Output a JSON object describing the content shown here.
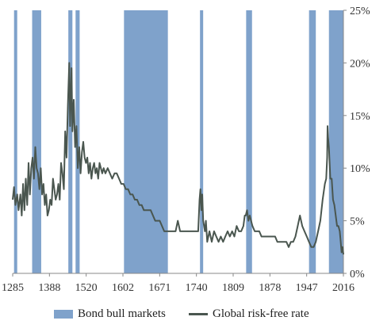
{
  "chart_data": {
    "type": "line",
    "title": "",
    "xlabel": "",
    "ylabel": "",
    "x_ticks": [
      "1285",
      "1388",
      "1520",
      "1602",
      "1671",
      "1740",
      "1809",
      "1878",
      "1947",
      "2016"
    ],
    "y_ticks": [
      "0%",
      "5%",
      "10%",
      "15%",
      "20%",
      "25%"
    ],
    "xlim": [
      1285,
      2016
    ],
    "ylim": [
      0,
      25
    ],
    "grid": false,
    "legend_position": "bottom",
    "bull_markets": {
      "name": "Bond bull markets",
      "color": "#7fa2cb",
      "periods": [
        [
          1288,
          1295
        ],
        [
          1328,
          1348
        ],
        [
          1408,
          1417
        ],
        [
          1424,
          1433
        ],
        [
          1531,
          1628
        ],
        [
          1699,
          1706
        ],
        [
          1801,
          1814
        ],
        [
          1940,
          1955
        ],
        [
          1984,
          2016
        ]
      ]
    },
    "series": [
      {
        "name": "Global risk-free rate",
        "color": "#4a564f",
        "points": [
          [
            1285,
            7.0
          ],
          [
            1288,
            8.2
          ],
          [
            1291,
            6.5
          ],
          [
            1295,
            7.5
          ],
          [
            1298,
            6.0
          ],
          [
            1302,
            7.5
          ],
          [
            1305,
            5.5
          ],
          [
            1308,
            8.5
          ],
          [
            1311,
            6.0
          ],
          [
            1314,
            9.0
          ],
          [
            1317,
            6.5
          ],
          [
            1320,
            10.5
          ],
          [
            1323,
            7.5
          ],
          [
            1326,
            10.0
          ],
          [
            1329,
            11.0
          ],
          [
            1332,
            9.0
          ],
          [
            1335,
            12.0
          ],
          [
            1338,
            10.0
          ],
          [
            1341,
            9.5
          ],
          [
            1344,
            8.0
          ],
          [
            1347,
            10.0
          ],
          [
            1350,
            7.5
          ],
          [
            1353,
            8.5
          ],
          [
            1356,
            6.5
          ],
          [
            1359,
            7.5
          ],
          [
            1362,
            5.5
          ],
          [
            1365,
            6.0
          ],
          [
            1368,
            7.0
          ],
          [
            1371,
            6.5
          ],
          [
            1374,
            9.0
          ],
          [
            1377,
            8.0
          ],
          [
            1380,
            7.0
          ],
          [
            1383,
            7.5
          ],
          [
            1386,
            8.5
          ],
          [
            1389,
            7.0
          ],
          [
            1392,
            10.5
          ],
          [
            1395,
            9.5
          ],
          [
            1398,
            8.0
          ],
          [
            1401,
            13.5
          ],
          [
            1404,
            11.0
          ],
          [
            1407,
            16.0
          ],
          [
            1410,
            20.0
          ],
          [
            1412,
            14.0
          ],
          [
            1415,
            19.5
          ],
          [
            1417,
            13.5
          ],
          [
            1420,
            16.5
          ],
          [
            1423,
            12.0
          ],
          [
            1426,
            14.0
          ],
          [
            1429,
            10.0
          ],
          [
            1432,
            12.0
          ],
          [
            1435,
            9.5
          ],
          [
            1438,
            11.5
          ],
          [
            1441,
            12.5
          ],
          [
            1444,
            11.0
          ],
          [
            1447,
            10.5
          ],
          [
            1450,
            11.0
          ],
          [
            1453,
            9.5
          ],
          [
            1456,
            10.5
          ],
          [
            1459,
            9.0
          ],
          [
            1462,
            10.0
          ],
          [
            1465,
            10.5
          ],
          [
            1468,
            9.5
          ],
          [
            1471,
            10.0
          ],
          [
            1474,
            9.0
          ],
          [
            1477,
            10.5
          ],
          [
            1480,
            10.0
          ],
          [
            1483,
            9.5
          ],
          [
            1486,
            10.0
          ],
          [
            1490,
            9.5
          ],
          [
            1495,
            10.0
          ],
          [
            1500,
            9.5
          ],
          [
            1505,
            9.0
          ],
          [
            1510,
            9.5
          ],
          [
            1515,
            9.5
          ],
          [
            1520,
            9.0
          ],
          [
            1525,
            8.5
          ],
          [
            1530,
            8.5
          ],
          [
            1535,
            8.0
          ],
          [
            1540,
            8.0
          ],
          [
            1545,
            7.5
          ],
          [
            1550,
            7.5
          ],
          [
            1555,
            7.0
          ],
          [
            1560,
            7.0
          ],
          [
            1565,
            6.5
          ],
          [
            1570,
            6.5
          ],
          [
            1575,
            6.0
          ],
          [
            1580,
            6.0
          ],
          [
            1585,
            6.0
          ],
          [
            1590,
            6.0
          ],
          [
            1600,
            5.0
          ],
          [
            1610,
            5.0
          ],
          [
            1620,
            4.0
          ],
          [
            1630,
            4.0
          ],
          [
            1645,
            4.0
          ],
          [
            1650,
            5.0
          ],
          [
            1655,
            4.0
          ],
          [
            1660,
            4.0
          ],
          [
            1670,
            4.0
          ],
          [
            1680,
            4.0
          ],
          [
            1690,
            4.0
          ],
          [
            1695,
            4.0
          ],
          [
            1698,
            7.0
          ],
          [
            1700,
            8.0
          ],
          [
            1702,
            6.0
          ],
          [
            1704,
            7.5
          ],
          [
            1706,
            5.0
          ],
          [
            1710,
            4.0
          ],
          [
            1712,
            5.0
          ],
          [
            1715,
            3.0
          ],
          [
            1720,
            4.0
          ],
          [
            1725,
            3.0
          ],
          [
            1730,
            4.0
          ],
          [
            1735,
            3.5
          ],
          [
            1740,
            3.0
          ],
          [
            1745,
            3.5
          ],
          [
            1750,
            3.0
          ],
          [
            1755,
            3.5
          ],
          [
            1760,
            4.0
          ],
          [
            1765,
            3.5
          ],
          [
            1770,
            4.0
          ],
          [
            1775,
            3.5
          ],
          [
            1780,
            4.5
          ],
          [
            1785,
            4.0
          ],
          [
            1790,
            4.0
          ],
          [
            1795,
            4.5
          ],
          [
            1798,
            5.5
          ],
          [
            1800,
            5.5
          ],
          [
            1803,
            6.0
          ],
          [
            1806,
            5.0
          ],
          [
            1809,
            5.5
          ],
          [
            1812,
            5.0
          ],
          [
            1815,
            4.5
          ],
          [
            1820,
            4.0
          ],
          [
            1825,
            4.0
          ],
          [
            1830,
            4.0
          ],
          [
            1835,
            3.5
          ],
          [
            1840,
            3.5
          ],
          [
            1845,
            3.5
          ],
          [
            1850,
            3.5
          ],
          [
            1855,
            3.5
          ],
          [
            1860,
            3.5
          ],
          [
            1865,
            3.5
          ],
          [
            1870,
            3.0
          ],
          [
            1875,
            3.0
          ],
          [
            1880,
            3.0
          ],
          [
            1885,
            3.0
          ],
          [
            1890,
            3.0
          ],
          [
            1895,
            2.5
          ],
          [
            1900,
            3.0
          ],
          [
            1905,
            3.0
          ],
          [
            1910,
            3.5
          ],
          [
            1915,
            4.5
          ],
          [
            1920,
            5.5
          ],
          [
            1925,
            4.5
          ],
          [
            1930,
            4.0
          ],
          [
            1935,
            3.5
          ],
          [
            1940,
            3.0
          ],
          [
            1945,
            2.5
          ],
          [
            1950,
            2.5
          ],
          [
            1955,
            3.0
          ],
          [
            1960,
            4.0
          ],
          [
            1965,
            5.0
          ],
          [
            1970,
            7.0
          ],
          [
            1975,
            8.5
          ],
          [
            1978,
            9.0
          ],
          [
            1980,
            11.0
          ],
          [
            1981,
            14.0
          ],
          [
            1982,
            13.0
          ],
          [
            1984,
            12.0
          ],
          [
            1987,
            9.0
          ],
          [
            1990,
            9.0
          ],
          [
            1993,
            7.0
          ],
          [
            1996,
            6.5
          ],
          [
            1999,
            5.5
          ],
          [
            2002,
            4.5
          ],
          [
            2005,
            4.5
          ],
          [
            2008,
            4.0
          ],
          [
            2010,
            3.0
          ],
          [
            2012,
            2.0
          ],
          [
            2014,
            2.5
          ],
          [
            2016,
            1.8
          ]
        ]
      }
    ]
  }
}
